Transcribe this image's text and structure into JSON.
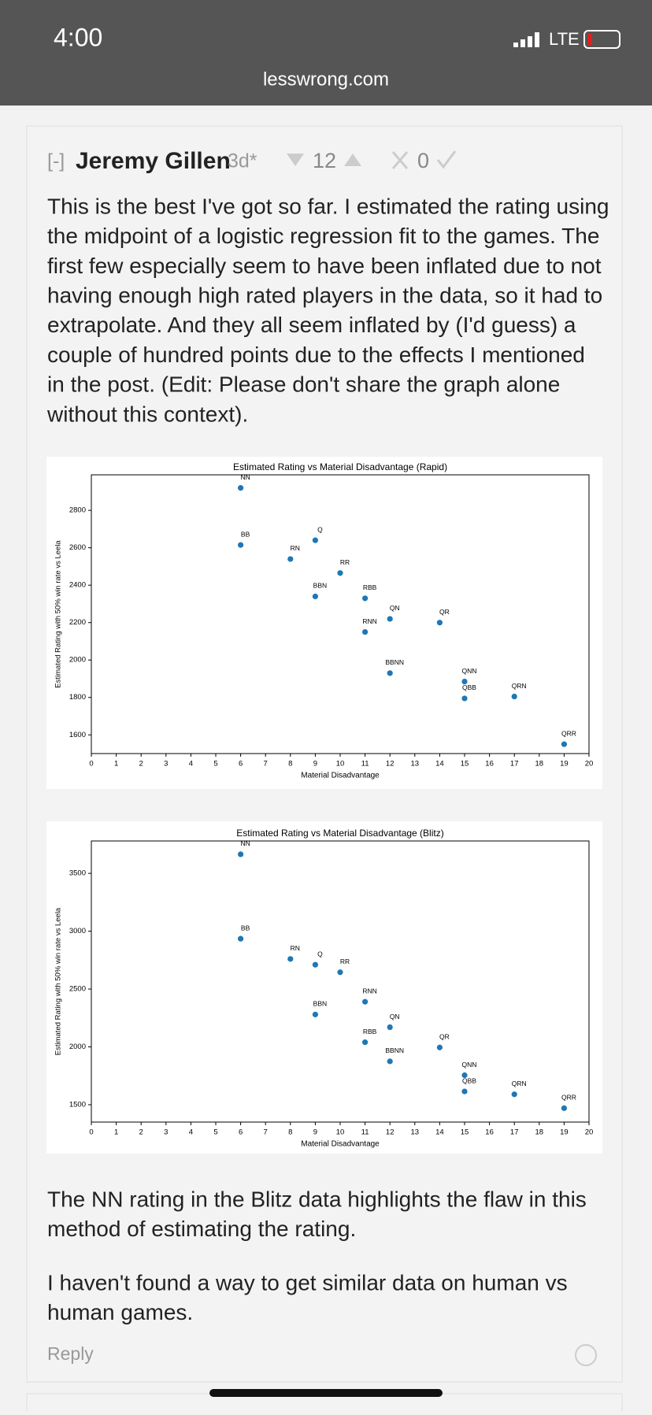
{
  "status": {
    "time": "4:00",
    "network": "LTE",
    "url": "lesswrong.com"
  },
  "comment": {
    "collapse": "[-]",
    "author": "Jeremy Gillen",
    "age": "3d*",
    "karma": 12,
    "agreement": 0,
    "paragraph1": [
      "This is the best I've got so far. I estimated the rating using",
      "the midpoint of a logistic regression fit to the games. The",
      "first few especially seem to have been inflated due to not",
      "having enough high rated players in the data, so it had to",
      "extrapolate. And they all seem inflated by (I'd guess) a",
      "couple of hundred points due to the effects I mentioned",
      "in the post. (Edit: Please don't share the graph alone",
      "without this context)."
    ],
    "paragraph2": [
      "The NN rating in the Blitz data highlights the flaw in this",
      "method of estimating the rating."
    ],
    "paragraph3": [
      "I haven't found a way to get similar data on human vs",
      "human games."
    ],
    "reply": "Reply"
  },
  "chart_data": [
    {
      "type": "scatter",
      "title": "Estimated Rating vs Material Disadvantage (Rapid)",
      "x_label": "Material Disadvantage",
      "y_label": "Estimated Rating with 50% win rate vs Leela",
      "color": "#1f77b4",
      "point_labels": [
        "NN",
        "BB",
        "RN",
        "Q",
        "RR",
        "BBN",
        "RBB",
        "RNN",
        "QN",
        "QR",
        "BBNN",
        "QNN",
        "QBB",
        "QRN",
        "QRR"
      ],
      "x": [
        6,
        6,
        8,
        9,
        10,
        9,
        11,
        11,
        12,
        14,
        12,
        15,
        15,
        17,
        19
      ],
      "values": [
        2920,
        2615,
        2540,
        2640,
        2465,
        2340,
        2330,
        2150,
        2220,
        2200,
        1930,
        1885,
        1795,
        1805,
        1550
      ],
      "xlim": [
        0,
        20
      ],
      "ylim": [
        1500,
        2990
      ],
      "xticks": [
        0,
        1,
        2,
        3,
        4,
        5,
        6,
        7,
        8,
        9,
        10,
        11,
        12,
        13,
        14,
        15,
        16,
        17,
        18,
        19,
        20
      ],
      "yticks": [
        1600,
        1800,
        2000,
        2200,
        2400,
        2600,
        2800
      ]
    },
    {
      "type": "scatter",
      "title": "Estimated Rating vs Material Disadvantage (Blitz)",
      "x_label": "Material Disadvantage",
      "y_label": "Estimated Rating with 50% win rate vs Leela",
      "color": "#1f77b4",
      "point_labels": [
        "NN",
        "BB",
        "RN",
        "Q",
        "RR",
        "RNN",
        "BBN",
        "QN",
        "RBB",
        "QR",
        "BBNN",
        "QNN",
        "QBB",
        "QRN",
        "QRR"
      ],
      "x": [
        6,
        6,
        8,
        9,
        10,
        11,
        9,
        12,
        11,
        14,
        12,
        15,
        15,
        17,
        19
      ],
      "values": [
        3665,
        2935,
        2760,
        2710,
        2645,
        2390,
        2280,
        2170,
        2040,
        1995,
        1875,
        1755,
        1615,
        1590,
        1470
      ],
      "xlim": [
        0,
        20
      ],
      "ylim": [
        1350,
        3780
      ],
      "xticks": [
        0,
        1,
        2,
        3,
        4,
        5,
        6,
        7,
        8,
        9,
        10,
        11,
        12,
        13,
        14,
        15,
        16,
        17,
        18,
        19,
        20
      ],
      "yticks": [
        1500,
        2000,
        2500,
        3000,
        3500
      ]
    }
  ]
}
